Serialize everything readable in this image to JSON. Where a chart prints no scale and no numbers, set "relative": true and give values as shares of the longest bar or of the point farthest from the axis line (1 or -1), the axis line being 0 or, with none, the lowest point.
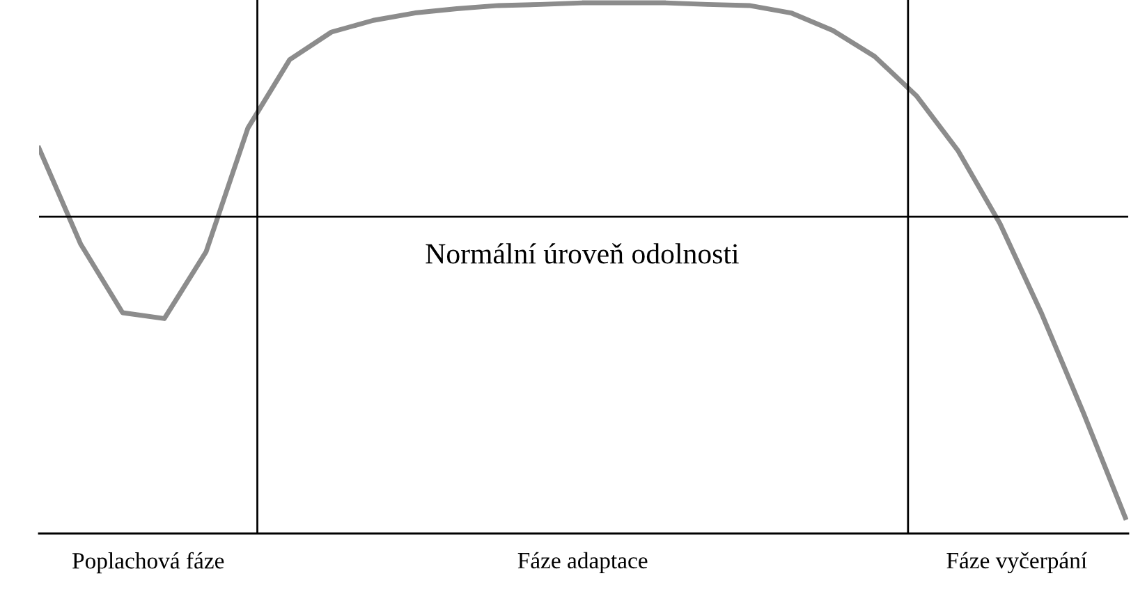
{
  "chart_data": {
    "type": "line",
    "relative": true,
    "categories": [
      null,
      null,
      null,
      null,
      null,
      null,
      null,
      null,
      null,
      null,
      null,
      null,
      null,
      null,
      null,
      null,
      null,
      null,
      null,
      null,
      null,
      null,
      null,
      null,
      null,
      null,
      null
    ],
    "series": [
      {
        "color": "#8c8c8c",
        "values": [
          0.726,
          0.545,
          0.416,
          0.405,
          0.531,
          0.764,
          0.893,
          0.945,
          0.967,
          0.981,
          0.989,
          0.995,
          0.997,
          1.0,
          1.0,
          1.0,
          0.997,
          0.995,
          0.981,
          0.948,
          0.899,
          0.825,
          0.721,
          0.584,
          0.414,
          0.227,
          0.03
        ]
      }
    ],
    "ref_lines": [
      {
        "axis": "y",
        "value": 0.597,
        "label": "Normální úroveň odolnosti",
        "color": "#000000"
      }
    ],
    "annotations": [
      "Poplachová fáze",
      "Fáze adaptace",
      "Fáze vyčerpání"
    ],
    "grid": false,
    "legend": false,
    "marker": "none",
    "line_style": "solid"
  }
}
